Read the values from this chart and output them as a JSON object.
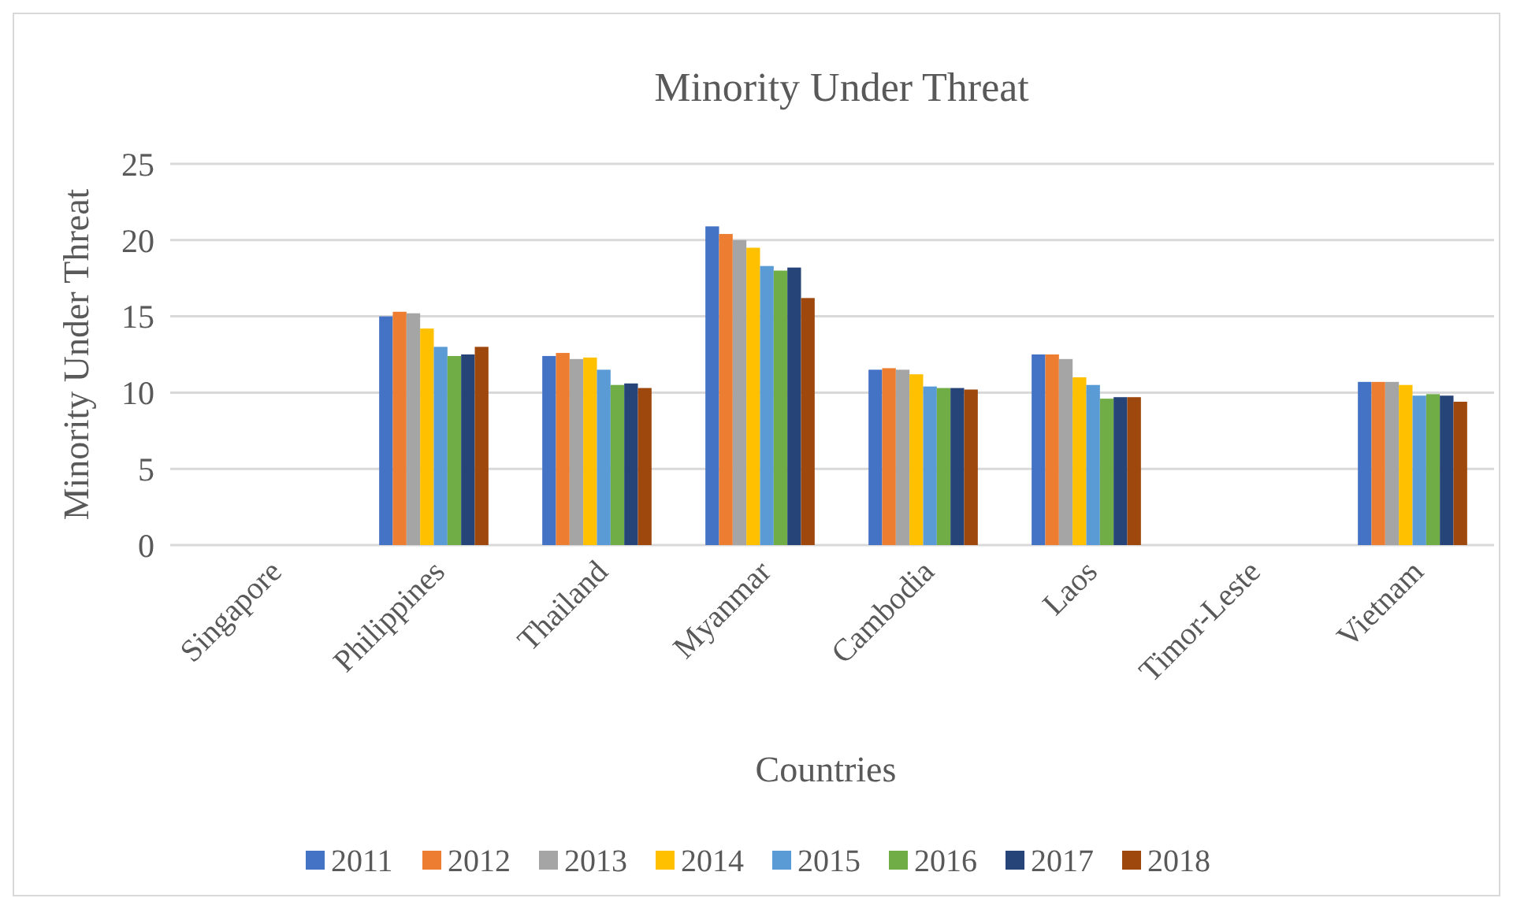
{
  "chart_data": {
    "type": "bar",
    "title": "Minority Under Threat",
    "xlabel": "Countries",
    "ylabel": "Minority Under Threat",
    "categories": [
      "Singapore",
      "Philippines",
      "Thailand",
      "Myanmar",
      "Cambodia",
      "Laos",
      "Timor-Leste",
      "Vietnam"
    ],
    "series": [
      {
        "name": "2011",
        "color": "#4472c4",
        "values": [
          null,
          15.0,
          12.4,
          20.9,
          11.5,
          12.5,
          null,
          10.7
        ]
      },
      {
        "name": "2012",
        "color": "#ed7d31",
        "values": [
          null,
          15.3,
          12.6,
          20.4,
          11.6,
          12.5,
          null,
          10.7
        ]
      },
      {
        "name": "2013",
        "color": "#a5a5a5",
        "values": [
          null,
          15.2,
          12.2,
          20.0,
          11.5,
          12.2,
          null,
          10.7
        ]
      },
      {
        "name": "2014",
        "color": "#ffc000",
        "values": [
          null,
          14.2,
          12.3,
          19.5,
          11.2,
          11.0,
          null,
          10.5
        ]
      },
      {
        "name": "2015",
        "color": "#5b9bd5",
        "values": [
          null,
          13.0,
          11.5,
          18.3,
          10.4,
          10.5,
          null,
          9.8
        ]
      },
      {
        "name": "2016",
        "color": "#70ad47",
        "values": [
          null,
          12.4,
          10.5,
          18.0,
          10.3,
          9.6,
          null,
          9.9
        ]
      },
      {
        "name": "2017",
        "color": "#264478",
        "values": [
          null,
          12.5,
          10.6,
          18.2,
          10.3,
          9.7,
          null,
          9.8
        ]
      },
      {
        "name": "2018",
        "color": "#9e480e",
        "values": [
          null,
          13.0,
          10.3,
          16.2,
          10.2,
          9.7,
          null,
          9.4
        ]
      }
    ],
    "ylim": [
      0,
      25
    ],
    "yticks": [
      0,
      5,
      10,
      15,
      20,
      25
    ],
    "grid": "y",
    "legend": "bottom"
  }
}
